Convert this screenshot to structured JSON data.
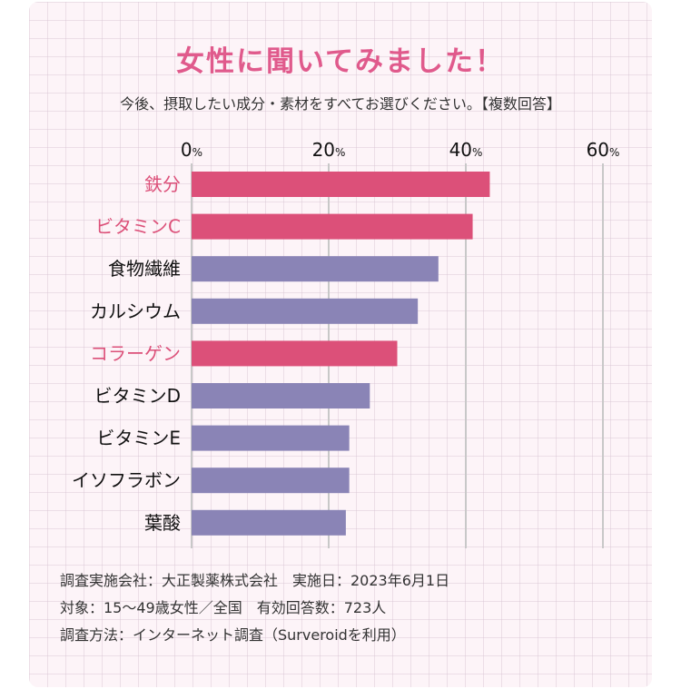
{
  "title": "女性に聞いてみました！",
  "subtitle": "今後、摂取したい成分・素材をすべてお選びください。【複数回答】",
  "colors": {
    "highlight": "#dc5079",
    "normal": "#8a84b6",
    "grid": "#c8c8c8",
    "title": "#e05a8c"
  },
  "chart_data": {
    "type": "bar",
    "orientation": "horizontal",
    "title": "女性に聞いてみました！",
    "xlabel": "",
    "ylabel": "",
    "xlim": [
      0,
      60
    ],
    "xticks": [
      {
        "value": 0,
        "num": "0",
        "unit": "%"
      },
      {
        "value": 20,
        "num": "20",
        "unit": "%"
      },
      {
        "value": 40,
        "num": "40",
        "unit": "%"
      },
      {
        "value": 60,
        "num": "60",
        "unit": "%"
      }
    ],
    "categories": [
      "鉄分",
      "ビタミンC",
      "食物繊維",
      "カルシウム",
      "コラーゲン",
      "ビタミンD",
      "ビタミンE",
      "イソフラボン",
      "葉酸"
    ],
    "values": [
      43.5,
      41,
      36,
      33,
      30,
      26,
      23,
      23,
      22.5
    ],
    "highlighted": [
      true,
      true,
      false,
      false,
      true,
      false,
      false,
      false,
      false
    ]
  },
  "notes": [
    "調査実施会社：大正製薬株式会社　実施日：2023年6月1日",
    "対象：15～49歳女性／全国　有効回答数：723人",
    "調査方法：インターネット調査（Surveroidを利用）"
  ]
}
